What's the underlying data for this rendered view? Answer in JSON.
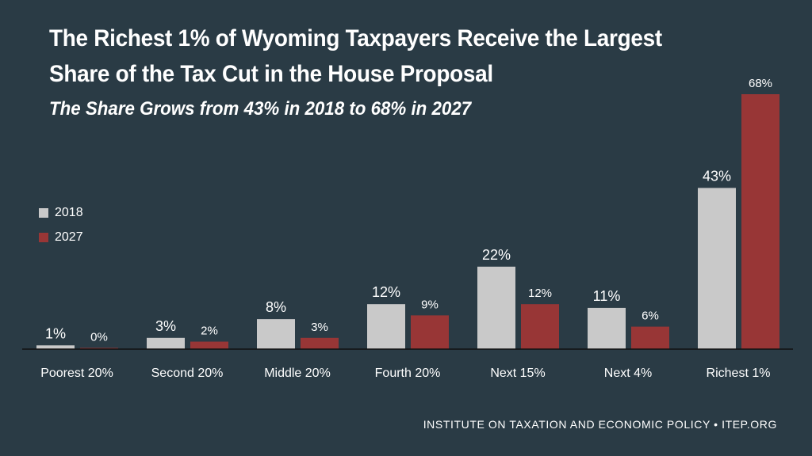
{
  "colors": {
    "background": "#2a3b45",
    "s2018": "#c9c9c9",
    "s2027": "#983636"
  },
  "footer": "INSTITUTE ON TAXATION AND ECONOMIC POLICY • ITEP.ORG",
  "chart_data": {
    "type": "bar",
    "title": "The Richest 1% of Wyoming Taxpayers Receive the Largest Share of the Tax Cut in the House Proposal",
    "title_line1": "The Richest 1% of Wyoming Taxpayers Receive the Largest",
    "title_line2": "Share of the Tax Cut in the House Proposal",
    "subtitle": "The Share Grows from 43% in 2018 to 68% in 2027",
    "categories": [
      "Poorest 20%",
      "Second 20%",
      "Middle 20%",
      "Fourth 20%",
      "Next 15%",
      "Next 4%",
      "Richest 1%"
    ],
    "series": [
      {
        "name": "2018",
        "values": [
          1,
          3,
          8,
          12,
          22,
          11,
          43
        ],
        "labels": [
          "1%",
          "3%",
          "8%",
          "12%",
          "22%",
          "11%",
          "43%"
        ]
      },
      {
        "name": "2027",
        "values": [
          0,
          2,
          3,
          9,
          12,
          6,
          68
        ],
        "labels": [
          "0%",
          "2%",
          "3%",
          "9%",
          "12%",
          "6%",
          "68%"
        ]
      }
    ],
    "ylim": [
      0,
      68
    ],
    "grid": false,
    "legend_placement": "left"
  }
}
